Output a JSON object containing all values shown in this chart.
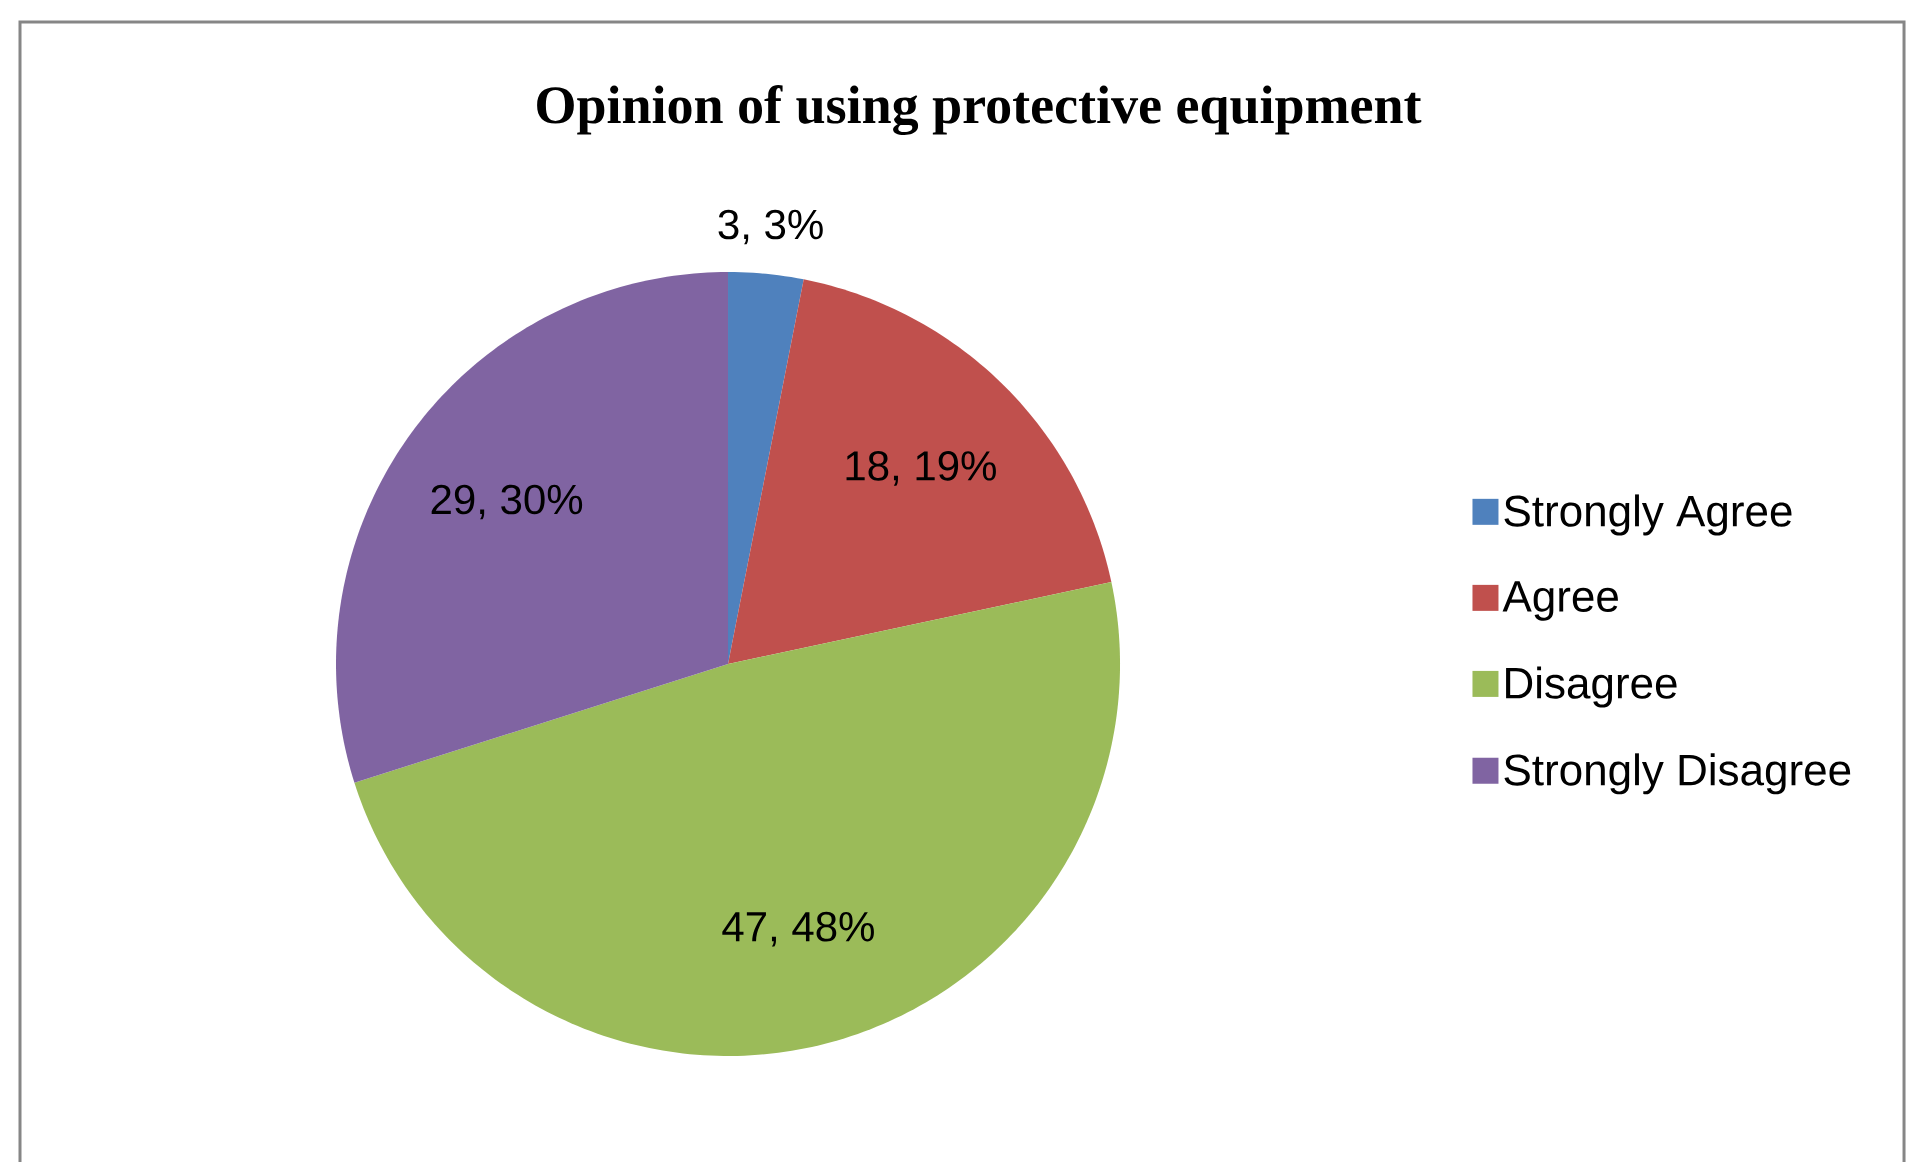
{
  "chart_data": {
    "type": "pie",
    "title": "Opinion of using protective equipment",
    "categories": [
      "Strongly Agree",
      "Agree",
      "Disagree",
      "Strongly Disagree"
    ],
    "values": [
      3,
      18,
      47,
      29
    ],
    "colors": [
      "#4f81bd",
      "#c0504d",
      "#9bbb59",
      "#8064a2"
    ],
    "value_labels": [
      "3, 3%",
      "18, 19%",
      "47, 48%",
      "29, 30%"
    ],
    "legend": "right"
  }
}
